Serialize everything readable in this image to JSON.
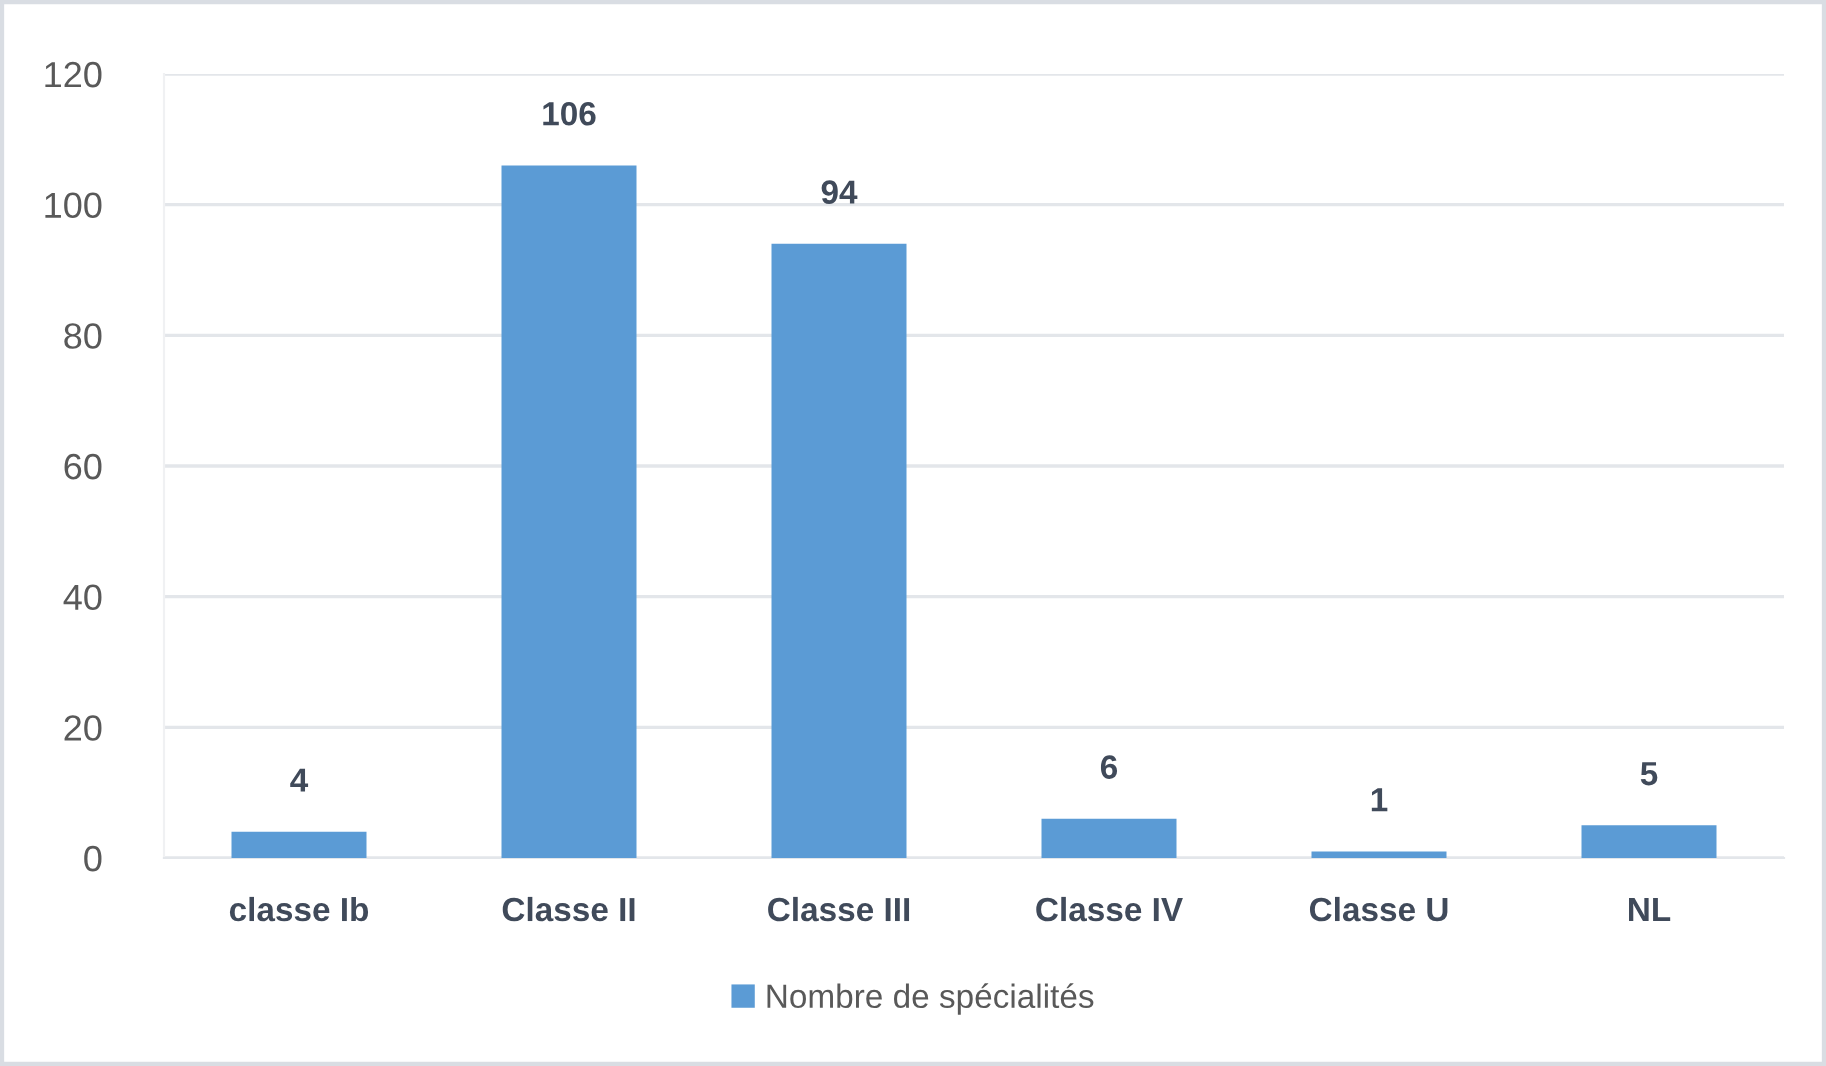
{
  "chart_data": {
    "type": "bar",
    "categories": [
      "classe Ib",
      "Classe II",
      "Classe III",
      "Classe IV",
      "Classe U",
      "NL"
    ],
    "series": [
      {
        "name": "Nombre de spécialités",
        "color": "#5b9bd5",
        "values": [
          4,
          106,
          94,
          6,
          1,
          5
        ]
      }
    ],
    "ylim": [
      0,
      120
    ],
    "yticks": [
      0,
      20,
      40,
      60,
      80,
      100,
      120
    ],
    "grid": "y",
    "legend": "bottom",
    "data_labels": true
  }
}
